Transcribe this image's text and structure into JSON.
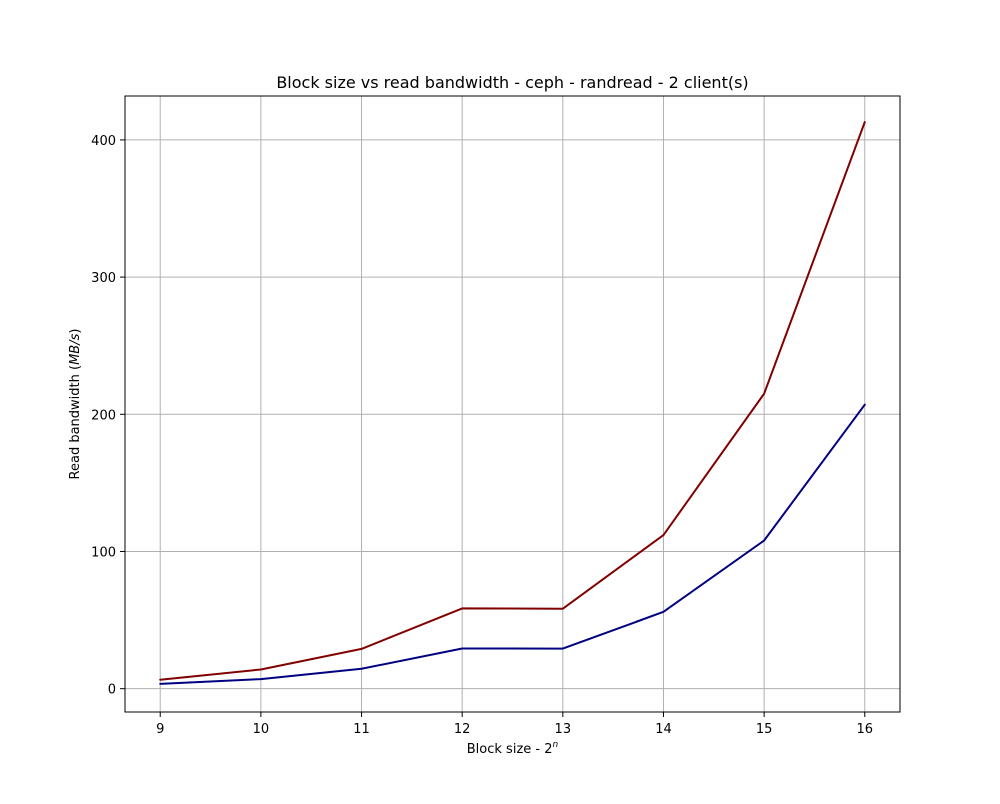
{
  "chart_data": {
    "type": "line",
    "title": "Block size vs read bandwidth - ceph - randread - 2 client(s)",
    "xlabel": {
      "prefix": "Block size - 2",
      "superscript": "n"
    },
    "ylabel": {
      "prefix": "Read bandwidth (",
      "unit": "MB/s",
      "suffix": ")"
    },
    "x": [
      9,
      10,
      11,
      12,
      13,
      14,
      15,
      16
    ],
    "xlim": [
      8.65,
      16.35
    ],
    "ylim": [
      -17,
      432
    ],
    "xticks": [
      9,
      10,
      11,
      12,
      13,
      14,
      15,
      16
    ],
    "yticks": [
      0,
      100,
      200,
      300,
      400
    ],
    "grid": true,
    "legend": "none",
    "series": [
      {
        "color": "#800000",
        "values": [
          6.5,
          14,
          29,
          58.5,
          58.3,
          112,
          215,
          413
        ]
      },
      {
        "color": "#000080",
        "values": [
          3.5,
          7,
          14.5,
          29.3,
          29.2,
          56,
          108,
          207
        ]
      }
    ]
  }
}
